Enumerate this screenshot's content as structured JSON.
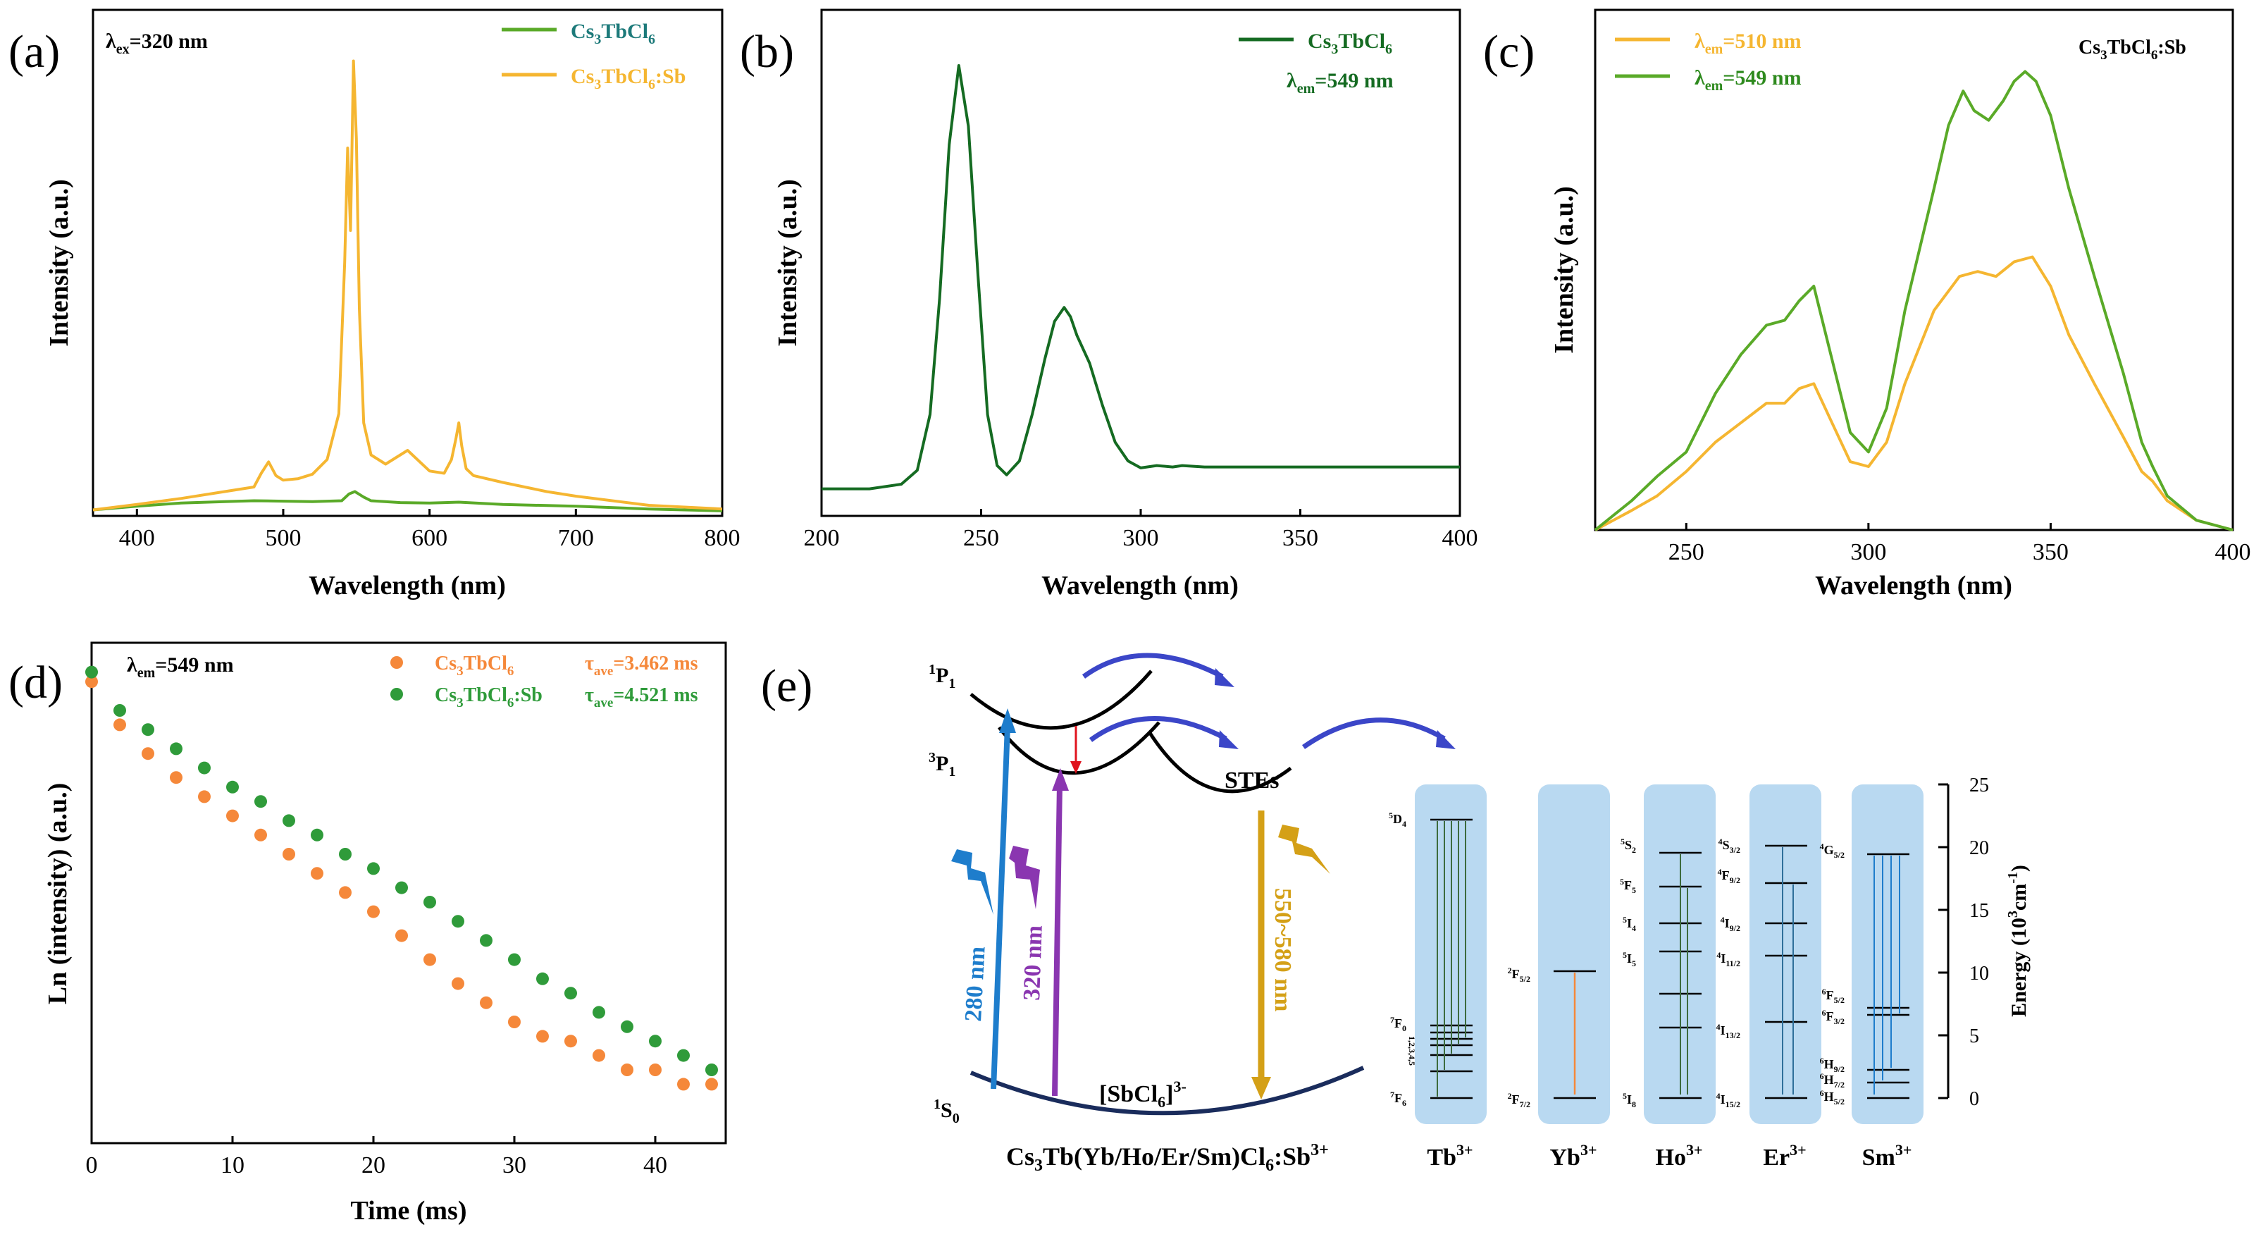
{
  "panels": {
    "a": {
      "letter": "(a)",
      "annotation": "λex=320 nm"
    },
    "b": {
      "letter": "(b)"
    },
    "c": {
      "letter": "(c)",
      "corner_label": "Cs3TbCl6:Sb"
    },
    "d": {
      "letter": "(d)",
      "annotation": "λem=549 nm"
    },
    "e": {
      "letter": "(e)"
    }
  },
  "chart_data": [
    {
      "id": "a",
      "type": "line",
      "title": "",
      "xlabel": "Wavelength (nm)",
      "ylabel": "Intensity (a.u.)",
      "xlim": [
        370,
        800
      ],
      "ylim": [
        0,
        1
      ],
      "xticks": [
        400,
        500,
        600,
        700,
        800
      ],
      "show_y_ticklabels": false,
      "legend_position": "top-right",
      "series": [
        {
          "name": "Cs3TbCl6",
          "color": "#5aaa28",
          "x": [
            370,
            400,
            430,
            460,
            480,
            500,
            520,
            540,
            545,
            549,
            555,
            560,
            580,
            600,
            620,
            650,
            700,
            750,
            800
          ],
          "y": [
            0.01,
            0.018,
            0.025,
            0.028,
            0.03,
            0.029,
            0.028,
            0.03,
            0.045,
            0.05,
            0.038,
            0.03,
            0.026,
            0.025,
            0.027,
            0.022,
            0.018,
            0.012,
            0.008
          ]
        },
        {
          "name": "Cs3TbCl6:Sb",
          "color": "#f5b631",
          "x": [
            370,
            400,
            430,
            460,
            480,
            485,
            490,
            495,
            500,
            510,
            520,
            530,
            538,
            542,
            544,
            546,
            548,
            550,
            552,
            555,
            560,
            570,
            580,
            585,
            590,
            600,
            610,
            615,
            618,
            620,
            622,
            625,
            630,
            650,
            680,
            700,
            750,
            800
          ],
          "y": [
            0.01,
            0.022,
            0.035,
            0.05,
            0.06,
            0.09,
            0.115,
            0.085,
            0.075,
            0.078,
            0.088,
            0.12,
            0.22,
            0.55,
            0.8,
            0.62,
            0.99,
            0.82,
            0.45,
            0.2,
            0.13,
            0.11,
            0.13,
            0.14,
            0.125,
            0.095,
            0.09,
            0.12,
            0.165,
            0.2,
            0.15,
            0.1,
            0.085,
            0.07,
            0.05,
            0.04,
            0.02,
            0.012
          ]
        }
      ]
    },
    {
      "id": "b",
      "type": "line",
      "title": "",
      "xlabel": "Wavelength (nm)",
      "ylabel": "Intensity (a.u.)",
      "xlim": [
        200,
        400
      ],
      "ylim": [
        0,
        1
      ],
      "xticks": [
        200,
        250,
        300,
        350,
        400
      ],
      "show_y_ticklabels": false,
      "legend_position": "top-right",
      "series": [
        {
          "name": "Cs3TbCl6",
          "color": "#156b22",
          "x": [
            200,
            215,
            225,
            230,
            234,
            237,
            240,
            243,
            246,
            249,
            252,
            255,
            258,
            262,
            266,
            270,
            273,
            276,
            278,
            280,
            284,
            288,
            292,
            296,
            300,
            305,
            310,
            313,
            320,
            340,
            370,
            400
          ],
          "y": [
            0.04,
            0.04,
            0.05,
            0.08,
            0.2,
            0.45,
            0.78,
            0.95,
            0.82,
            0.5,
            0.2,
            0.09,
            0.07,
            0.1,
            0.2,
            0.32,
            0.4,
            0.43,
            0.41,
            0.37,
            0.31,
            0.22,
            0.14,
            0.1,
            0.085,
            0.09,
            0.087,
            0.09,
            0.087,
            0.087,
            0.087,
            0.087
          ]
        }
      ],
      "legend_note": "λem=549 nm"
    },
    {
      "id": "c",
      "type": "line",
      "title": "",
      "xlabel": "Wavelength (nm)",
      "ylabel": "Intensity (a.u.)",
      "xlim": [
        225,
        400
      ],
      "ylim": [
        0,
        1
      ],
      "xticks": [
        250,
        300,
        350,
        400
      ],
      "show_y_ticklabels": false,
      "legend_position": "top-left",
      "series": [
        {
          "name": "λem=510 nm",
          "color": "#f5b631",
          "x": [
            225,
            235,
            242,
            250,
            258,
            265,
            272,
            277,
            281,
            285,
            290,
            295,
            300,
            305,
            310,
            318,
            325,
            330,
            335,
            340,
            345,
            350,
            355,
            362,
            370,
            375,
            378,
            382,
            390,
            400
          ],
          "y": [
            0.0,
            0.04,
            0.07,
            0.12,
            0.18,
            0.22,
            0.26,
            0.26,
            0.29,
            0.3,
            0.22,
            0.14,
            0.13,
            0.18,
            0.3,
            0.45,
            0.52,
            0.53,
            0.52,
            0.55,
            0.56,
            0.5,
            0.4,
            0.3,
            0.19,
            0.12,
            0.1,
            0.06,
            0.02,
            0.0
          ]
        },
        {
          "name": "λem=549 nm",
          "color": "#5aaa28",
          "x": [
            225,
            235,
            242,
            250,
            258,
            265,
            272,
            277,
            281,
            285,
            290,
            295,
            300,
            305,
            310,
            318,
            322,
            326,
            329,
            333,
            337,
            340,
            343,
            346,
            350,
            355,
            362,
            370,
            375,
            378,
            382,
            390,
            400
          ],
          "y": [
            0.0,
            0.06,
            0.11,
            0.16,
            0.28,
            0.36,
            0.42,
            0.43,
            0.47,
            0.5,
            0.35,
            0.2,
            0.16,
            0.25,
            0.45,
            0.7,
            0.83,
            0.9,
            0.86,
            0.84,
            0.88,
            0.92,
            0.94,
            0.92,
            0.85,
            0.7,
            0.52,
            0.32,
            0.18,
            0.13,
            0.07,
            0.02,
            0.0
          ]
        }
      ]
    },
    {
      "id": "d",
      "type": "scatter",
      "title": "",
      "xlabel": "Time (ms)",
      "ylabel": "Ln (intensity) (a.u.)",
      "xlim": [
        0,
        45
      ],
      "ylim": [
        0,
        1
      ],
      "xticks": [
        0,
        10,
        20,
        30,
        40
      ],
      "show_y_ticklabels": false,
      "legend_position": "top-right",
      "series": [
        {
          "name": "Cs3TbCl6",
          "tau": "τave=3.462 ms",
          "color": "#f5883a",
          "x": [
            0,
            2,
            4,
            6,
            8,
            10,
            12,
            14,
            16,
            18,
            20,
            22,
            24,
            26,
            28,
            30,
            32,
            34,
            36,
            38,
            40,
            42,
            44
          ],
          "y": [
            0.96,
            0.87,
            0.81,
            0.76,
            0.72,
            0.68,
            0.64,
            0.6,
            0.56,
            0.52,
            0.48,
            0.43,
            0.38,
            0.33,
            0.29,
            0.25,
            0.22,
            0.21,
            0.18,
            0.15,
            0.15,
            0.12,
            0.12
          ]
        },
        {
          "name": "Cs3TbCl6:Sb",
          "tau": "τave=4.521 ms",
          "color": "#2f9b3a",
          "x": [
            0,
            2,
            4,
            6,
            8,
            10,
            12,
            14,
            16,
            18,
            20,
            22,
            24,
            26,
            28,
            30,
            32,
            34,
            36,
            38,
            40,
            42,
            44
          ],
          "y": [
            0.98,
            0.9,
            0.86,
            0.82,
            0.78,
            0.74,
            0.71,
            0.67,
            0.64,
            0.6,
            0.57,
            0.53,
            0.5,
            0.46,
            0.42,
            0.38,
            0.34,
            0.31,
            0.27,
            0.24,
            0.21,
            0.18,
            0.15
          ]
        }
      ]
    }
  ],
  "diagram_e": {
    "levels": {
      "p1": "1P1",
      "p3": "3P1",
      "s0": "1S0",
      "stes": "STEs",
      "complex": "[SbCl6]3-"
    },
    "arrows": {
      "a280": "280 nm",
      "a320": "320 nm",
      "emis": "550~580 nm"
    },
    "compound": "Cs3Tb(Yb/Ho/Er/Sm)Cl6:Sb3+",
    "ions": [
      "Tb3+",
      "Yb3+",
      "Ho3+",
      "Er3+",
      "Sm3+"
    ],
    "energy_axis": {
      "label": "Energy (103cm-1)",
      "ticks": [
        0,
        5,
        10,
        15,
        20,
        25
      ]
    },
    "tb_labels": {
      "top": "5D4",
      "mid": "7F0",
      "mid_sub": "1,2,3,4,5",
      "bottom": "7F6"
    },
    "yb_labels": {
      "top": "2F5/2",
      "bottom": "2F7/2"
    },
    "ho_labels": [
      "5S2",
      "5F5",
      "5I4",
      "5I5",
      "5I8"
    ],
    "er_labels": [
      "4S3/2",
      "4F9/2",
      "4I9/2",
      "4I11/2",
      "4I13/2",
      "4I15/2"
    ],
    "sm_labels": [
      "4G5/2",
      "6F5/2",
      "6F3/2",
      "6H9/2",
      "6H7/2",
      "6H5/2"
    ]
  }
}
